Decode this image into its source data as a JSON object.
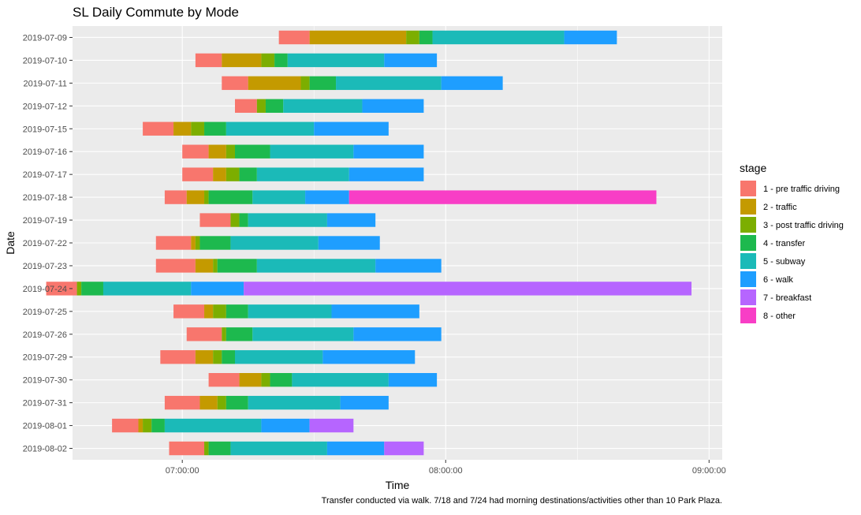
{
  "chart_data": {
    "type": "bar",
    "orientation": "horizontal-stacked",
    "title": "SL Daily Commute by Mode",
    "xlabel": "Time",
    "ylabel": "Date",
    "caption": "Transfer conducted via walk. 7/18 and 7/24 had morning destinations/activities other than 10 Park Plaza.",
    "xlim": [
      "06:35:00",
      "09:03:00"
    ],
    "x_ticks": [
      "07:00:00",
      "08:00:00",
      "09:00:00"
    ],
    "grid": true,
    "legend_position": "right",
    "legend_title": "stage",
    "stages": [
      {
        "name": "1 - pre traffic driving",
        "color": "#F8766D"
      },
      {
        "name": "2 - traffic",
        "color": "#C49A00"
      },
      {
        "name": "3 - post traffic driving",
        "color": "#7CAE00"
      },
      {
        "name": "4 - transfer",
        "color": "#1DB94E"
      },
      {
        "name": "5 - subway",
        "color": "#1BBAB8"
      },
      {
        "name": "6 - walk",
        "color": "#1E9EFF"
      },
      {
        "name": "7 - breakfast",
        "color": "#B665FF"
      },
      {
        "name": "8 - other",
        "color": "#F83EC6"
      }
    ],
    "categories": [
      "2019-07-09",
      "2019-07-10",
      "2019-07-11",
      "2019-07-12",
      "2019-07-15",
      "2019-07-16",
      "2019-07-17",
      "2019-07-18",
      "2019-07-19",
      "2019-07-22",
      "2019-07-23",
      "2019-07-24",
      "2019-07-25",
      "2019-07-26",
      "2019-07-29",
      "2019-07-30",
      "2019-07-31",
      "2019-08-01",
      "2019-08-02"
    ],
    "series": [
      {
        "date": "2019-07-09",
        "segments": [
          {
            "stage": 1,
            "start": "07:22",
            "end": "07:29"
          },
          {
            "stage": 2,
            "start": "07:29",
            "end": "07:51"
          },
          {
            "stage": 3,
            "start": "07:51",
            "end": "07:54"
          },
          {
            "stage": 4,
            "start": "07:54",
            "end": "07:57"
          },
          {
            "stage": 5,
            "start": "07:57",
            "end": "08:27"
          },
          {
            "stage": 6,
            "start": "08:27",
            "end": "08:39"
          }
        ]
      },
      {
        "date": "2019-07-10",
        "segments": [
          {
            "stage": 1,
            "start": "07:03",
            "end": "07:09"
          },
          {
            "stage": 2,
            "start": "07:09",
            "end": "07:18"
          },
          {
            "stage": 3,
            "start": "07:18",
            "end": "07:21"
          },
          {
            "stage": 4,
            "start": "07:21",
            "end": "07:24"
          },
          {
            "stage": 5,
            "start": "07:24",
            "end": "07:46"
          },
          {
            "stage": 6,
            "start": "07:46",
            "end": "07:58"
          }
        ]
      },
      {
        "date": "2019-07-11",
        "segments": [
          {
            "stage": 1,
            "start": "07:09",
            "end": "07:15"
          },
          {
            "stage": 2,
            "start": "07:15",
            "end": "07:27"
          },
          {
            "stage": 3,
            "start": "07:27",
            "end": "07:29"
          },
          {
            "stage": 4,
            "start": "07:29",
            "end": "07:35"
          },
          {
            "stage": 5,
            "start": "07:35",
            "end": "07:59"
          },
          {
            "stage": 6,
            "start": "07:59",
            "end": "08:13"
          }
        ]
      },
      {
        "date": "2019-07-12",
        "segments": [
          {
            "stage": 1,
            "start": "07:12",
            "end": "07:17"
          },
          {
            "stage": 2,
            "start": "07:17",
            "end": "07:17"
          },
          {
            "stage": 3,
            "start": "07:17",
            "end": "07:19"
          },
          {
            "stage": 4,
            "start": "07:19",
            "end": "07:23"
          },
          {
            "stage": 5,
            "start": "07:23",
            "end": "07:41"
          },
          {
            "stage": 6,
            "start": "07:41",
            "end": "07:55"
          }
        ]
      },
      {
        "date": "2019-07-15",
        "segments": [
          {
            "stage": 1,
            "start": "06:51",
            "end": "06:58"
          },
          {
            "stage": 2,
            "start": "06:58",
            "end": "07:02"
          },
          {
            "stage": 3,
            "start": "07:02",
            "end": "07:05"
          },
          {
            "stage": 4,
            "start": "07:05",
            "end": "07:10"
          },
          {
            "stage": 5,
            "start": "07:10",
            "end": "07:30"
          },
          {
            "stage": 6,
            "start": "07:30",
            "end": "07:47"
          }
        ]
      },
      {
        "date": "2019-07-16",
        "segments": [
          {
            "stage": 1,
            "start": "07:00",
            "end": "07:06"
          },
          {
            "stage": 2,
            "start": "07:06",
            "end": "07:10"
          },
          {
            "stage": 3,
            "start": "07:10",
            "end": "07:12"
          },
          {
            "stage": 4,
            "start": "07:12",
            "end": "07:20"
          },
          {
            "stage": 5,
            "start": "07:20",
            "end": "07:39"
          },
          {
            "stage": 6,
            "start": "07:39",
            "end": "07:55"
          }
        ]
      },
      {
        "date": "2019-07-17",
        "segments": [
          {
            "stage": 1,
            "start": "07:00",
            "end": "07:07"
          },
          {
            "stage": 2,
            "start": "07:07",
            "end": "07:10"
          },
          {
            "stage": 3,
            "start": "07:10",
            "end": "07:13"
          },
          {
            "stage": 4,
            "start": "07:13",
            "end": "07:17"
          },
          {
            "stage": 5,
            "start": "07:17",
            "end": "07:38"
          },
          {
            "stage": 6,
            "start": "07:38",
            "end": "07:55"
          }
        ]
      },
      {
        "date": "2019-07-18",
        "segments": [
          {
            "stage": 1,
            "start": "06:56",
            "end": "07:01"
          },
          {
            "stage": 2,
            "start": "07:01",
            "end": "07:05"
          },
          {
            "stage": 3,
            "start": "07:05",
            "end": "07:06"
          },
          {
            "stage": 4,
            "start": "07:06",
            "end": "07:16"
          },
          {
            "stage": 5,
            "start": "07:16",
            "end": "07:28"
          },
          {
            "stage": 6,
            "start": "07:28",
            "end": "07:38"
          },
          {
            "stage": 8,
            "start": "07:38",
            "end": "08:48"
          }
        ]
      },
      {
        "date": "2019-07-19",
        "segments": [
          {
            "stage": 1,
            "start": "07:04",
            "end": "07:11"
          },
          {
            "stage": 3,
            "start": "07:11",
            "end": "07:13"
          },
          {
            "stage": 4,
            "start": "07:13",
            "end": "07:15"
          },
          {
            "stage": 5,
            "start": "07:15",
            "end": "07:33"
          },
          {
            "stage": 6,
            "start": "07:33",
            "end": "07:44"
          }
        ]
      },
      {
        "date": "2019-07-22",
        "segments": [
          {
            "stage": 1,
            "start": "06:54",
            "end": "07:02"
          },
          {
            "stage": 2,
            "start": "07:02",
            "end": "07:03"
          },
          {
            "stage": 3,
            "start": "07:03",
            "end": "07:04"
          },
          {
            "stage": 4,
            "start": "07:04",
            "end": "07:11"
          },
          {
            "stage": 5,
            "start": "07:11",
            "end": "07:31"
          },
          {
            "stage": 6,
            "start": "07:31",
            "end": "07:45"
          }
        ]
      },
      {
        "date": "2019-07-23",
        "segments": [
          {
            "stage": 1,
            "start": "06:54",
            "end": "07:03"
          },
          {
            "stage": 2,
            "start": "07:03",
            "end": "07:07"
          },
          {
            "stage": 3,
            "start": "07:07",
            "end": "07:08"
          },
          {
            "stage": 4,
            "start": "07:08",
            "end": "07:17"
          },
          {
            "stage": 5,
            "start": "07:17",
            "end": "07:44"
          },
          {
            "stage": 6,
            "start": "07:44",
            "end": "07:59"
          }
        ]
      },
      {
        "date": "2019-07-24",
        "segments": [
          {
            "stage": 1,
            "start": "06:29",
            "end": "06:36"
          },
          {
            "stage": 3,
            "start": "06:36",
            "end": "06:37"
          },
          {
            "stage": 4,
            "start": "06:37",
            "end": "06:42"
          },
          {
            "stage": 5,
            "start": "06:42",
            "end": "07:02"
          },
          {
            "stage": 6,
            "start": "07:02",
            "end": "07:14"
          },
          {
            "stage": 7,
            "start": "07:14",
            "end": "08:56"
          }
        ]
      },
      {
        "date": "2019-07-25",
        "segments": [
          {
            "stage": 1,
            "start": "06:58",
            "end": "07:05"
          },
          {
            "stage": 2,
            "start": "07:05",
            "end": "07:07"
          },
          {
            "stage": 3,
            "start": "07:07",
            "end": "07:10"
          },
          {
            "stage": 4,
            "start": "07:10",
            "end": "07:15"
          },
          {
            "stage": 5,
            "start": "07:15",
            "end": "07:34"
          },
          {
            "stage": 6,
            "start": "07:34",
            "end": "07:54"
          }
        ]
      },
      {
        "date": "2019-07-26",
        "segments": [
          {
            "stage": 1,
            "start": "07:01",
            "end": "07:09"
          },
          {
            "stage": 3,
            "start": "07:09",
            "end": "07:10"
          },
          {
            "stage": 4,
            "start": "07:10",
            "end": "07:16"
          },
          {
            "stage": 5,
            "start": "07:16",
            "end": "07:39"
          },
          {
            "stage": 6,
            "start": "07:39",
            "end": "07:59"
          }
        ]
      },
      {
        "date": "2019-07-29",
        "segments": [
          {
            "stage": 1,
            "start": "06:55",
            "end": "07:03"
          },
          {
            "stage": 2,
            "start": "07:03",
            "end": "07:07"
          },
          {
            "stage": 3,
            "start": "07:07",
            "end": "07:09"
          },
          {
            "stage": 4,
            "start": "07:09",
            "end": "07:12"
          },
          {
            "stage": 5,
            "start": "07:12",
            "end": "07:32"
          },
          {
            "stage": 6,
            "start": "07:32",
            "end": "07:53"
          }
        ]
      },
      {
        "date": "2019-07-30",
        "segments": [
          {
            "stage": 1,
            "start": "07:06",
            "end": "07:13"
          },
          {
            "stage": 2,
            "start": "07:13",
            "end": "07:18"
          },
          {
            "stage": 3,
            "start": "07:18",
            "end": "07:20"
          },
          {
            "stage": 4,
            "start": "07:20",
            "end": "07:25"
          },
          {
            "stage": 5,
            "start": "07:25",
            "end": "07:47"
          },
          {
            "stage": 6,
            "start": "07:47",
            "end": "07:58"
          }
        ]
      },
      {
        "date": "2019-07-31",
        "segments": [
          {
            "stage": 1,
            "start": "06:56",
            "end": "07:04"
          },
          {
            "stage": 2,
            "start": "07:04",
            "end": "07:08"
          },
          {
            "stage": 3,
            "start": "07:08",
            "end": "07:10"
          },
          {
            "stage": 4,
            "start": "07:10",
            "end": "07:15"
          },
          {
            "stage": 5,
            "start": "07:15",
            "end": "07:36"
          },
          {
            "stage": 6,
            "start": "07:36",
            "end": "07:47"
          }
        ]
      },
      {
        "date": "2019-08-01",
        "segments": [
          {
            "stage": 1,
            "start": "06:44",
            "end": "06:50"
          },
          {
            "stage": 2,
            "start": "06:50",
            "end": "06:51"
          },
          {
            "stage": 3,
            "start": "06:51",
            "end": "06:53"
          },
          {
            "stage": 4,
            "start": "06:53",
            "end": "06:56"
          },
          {
            "stage": 5,
            "start": "06:56",
            "end": "07:18"
          },
          {
            "stage": 6,
            "start": "07:18",
            "end": "07:29"
          },
          {
            "stage": 7,
            "start": "07:29",
            "end": "07:39"
          }
        ]
      },
      {
        "date": "2019-08-02",
        "segments": [
          {
            "stage": 1,
            "start": "06:57",
            "end": "07:05"
          },
          {
            "stage": 3,
            "start": "07:05",
            "end": "07:06"
          },
          {
            "stage": 4,
            "start": "07:06",
            "end": "07:11"
          },
          {
            "stage": 5,
            "start": "07:11",
            "end": "07:33"
          },
          {
            "stage": 6,
            "start": "07:33",
            "end": "07:46"
          },
          {
            "stage": 7,
            "start": "07:46",
            "end": "07:55"
          }
        ]
      }
    ]
  }
}
